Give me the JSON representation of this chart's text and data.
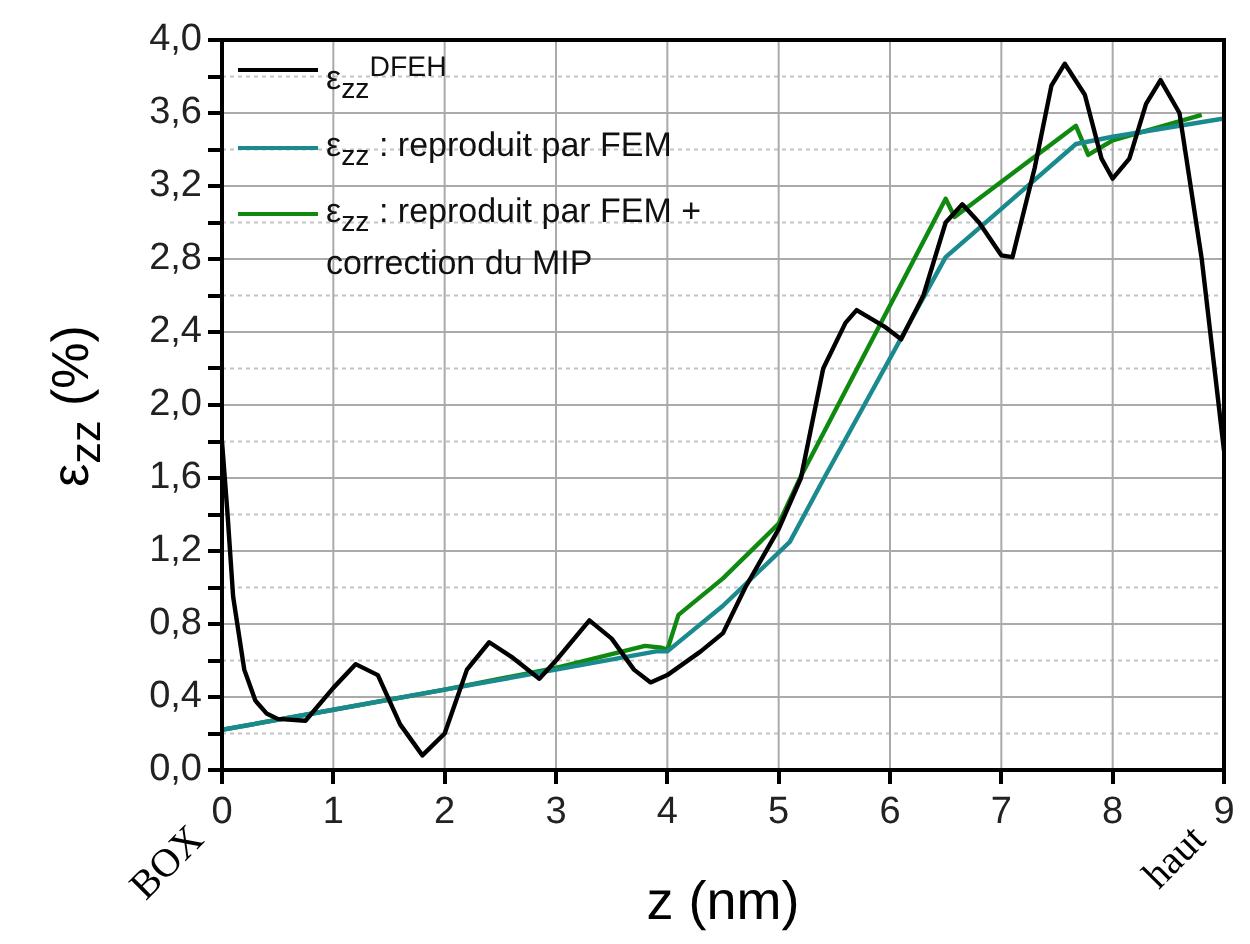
{
  "chart_data": {
    "type": "line",
    "xlabel": "z (nm)",
    "ylabel": "ε$_{zz}$ (%)",
    "xlim": [
      0,
      9
    ],
    "xticks": [
      0,
      1,
      2,
      3,
      4,
      5,
      6,
      7,
      8,
      9
    ],
    "ylim": [
      0,
      4
    ],
    "yticks": [
      {
        "value": 0,
        "label": "0,0"
      },
      {
        "value": 0.2,
        "label": null
      },
      {
        "value": 0.4,
        "label": "0,4"
      },
      {
        "value": 0.6,
        "label": null
      },
      {
        "value": 0.8,
        "label": "0,8"
      },
      {
        "value": 1.0,
        "label": null
      },
      {
        "value": 1.2,
        "label": "1,2"
      },
      {
        "value": 1.4,
        "label": null
      },
      {
        "value": 1.6,
        "label": "1,6"
      },
      {
        "value": 1.8,
        "label": null
      },
      {
        "value": 2.0,
        "label": "2,0"
      },
      {
        "value": 2.2,
        "label": null
      },
      {
        "value": 2.4,
        "label": "2,4"
      },
      {
        "value": 2.6,
        "label": null
      },
      {
        "value": 2.8,
        "label": "2,8"
      },
      {
        "value": 3.0,
        "label": null
      },
      {
        "value": 3.2,
        "label": "3,2"
      },
      {
        "value": 3.4,
        "label": null
      },
      {
        "value": 3.6,
        "label": "3,6"
      },
      {
        "value": 3.8,
        "label": null
      },
      {
        "value": 4.0,
        "label": "4,0"
      }
    ],
    "grid": true,
    "legend": "top left",
    "marker": "none",
    "line_style": "solid",
    "annotations": [
      "BOX",
      "haut"
    ],
    "series": [
      {
        "name": "ε$_{zz}$$^{DFEH}$",
        "color": "#000000",
        "x": [
          0,
          0.05,
          0.1,
          0.2,
          0.3,
          0.4,
          0.5,
          0.75,
          1.0,
          1.2,
          1.4,
          1.6,
          1.8,
          2.0,
          2.2,
          2.4,
          2.6,
          2.85,
          3.0,
          3.3,
          3.5,
          3.7,
          3.85,
          4.0,
          4.3,
          4.5,
          4.7,
          5.0,
          5.2,
          5.4,
          5.6,
          5.7,
          5.95,
          6.1,
          6.3,
          6.5,
          6.65,
          6.8,
          7.0,
          7.1,
          7.3,
          7.45,
          7.57,
          7.75,
          7.9,
          8.0,
          8.15,
          8.3,
          8.43,
          8.6,
          8.8,
          9.0
        ],
        "values": [
          1.8,
          1.4,
          0.95,
          0.55,
          0.38,
          0.31,
          0.28,
          0.27,
          0.45,
          0.58,
          0.52,
          0.25,
          0.08,
          0.2,
          0.55,
          0.7,
          0.62,
          0.5,
          0.6,
          0.82,
          0.72,
          0.55,
          0.48,
          0.52,
          0.65,
          0.75,
          1.0,
          1.32,
          1.6,
          2.2,
          2.45,
          2.52,
          2.43,
          2.36,
          2.6,
          3.0,
          3.1,
          3.0,
          2.82,
          2.81,
          3.3,
          3.75,
          3.87,
          3.7,
          3.35,
          3.24,
          3.35,
          3.65,
          3.78,
          3.6,
          2.8,
          1.75
        ]
      },
      {
        "name": "ε$_{zz}$ : reproduit par FEM",
        "color": "#1a8a8f",
        "x": [
          0,
          1,
          2,
          3,
          3.9,
          4.0,
          4.5,
          5.1,
          5.4,
          6.5,
          7.67,
          8.0,
          9.0
        ],
        "values": [
          0.22,
          0.33,
          0.44,
          0.55,
          0.65,
          0.65,
          0.9,
          1.25,
          1.59,
          2.81,
          3.43,
          3.47,
          3.57
        ]
      },
      {
        "name": "ε$_{zz}$ : reproduit par FEM + correction du MIP",
        "color": "#0f8a0f",
        "x": [
          0,
          1,
          2,
          3,
          3.8,
          3.95,
          4.0,
          4.1,
          4.5,
          5.0,
          5.2,
          6.5,
          6.58,
          7.67,
          7.78,
          8.0,
          8.8
        ],
        "values": [
          0.22,
          0.33,
          0.44,
          0.56,
          0.68,
          0.67,
          0.66,
          0.85,
          1.05,
          1.35,
          1.61,
          3.13,
          3.03,
          3.53,
          3.37,
          3.45,
          3.59
        ]
      }
    ]
  }
}
